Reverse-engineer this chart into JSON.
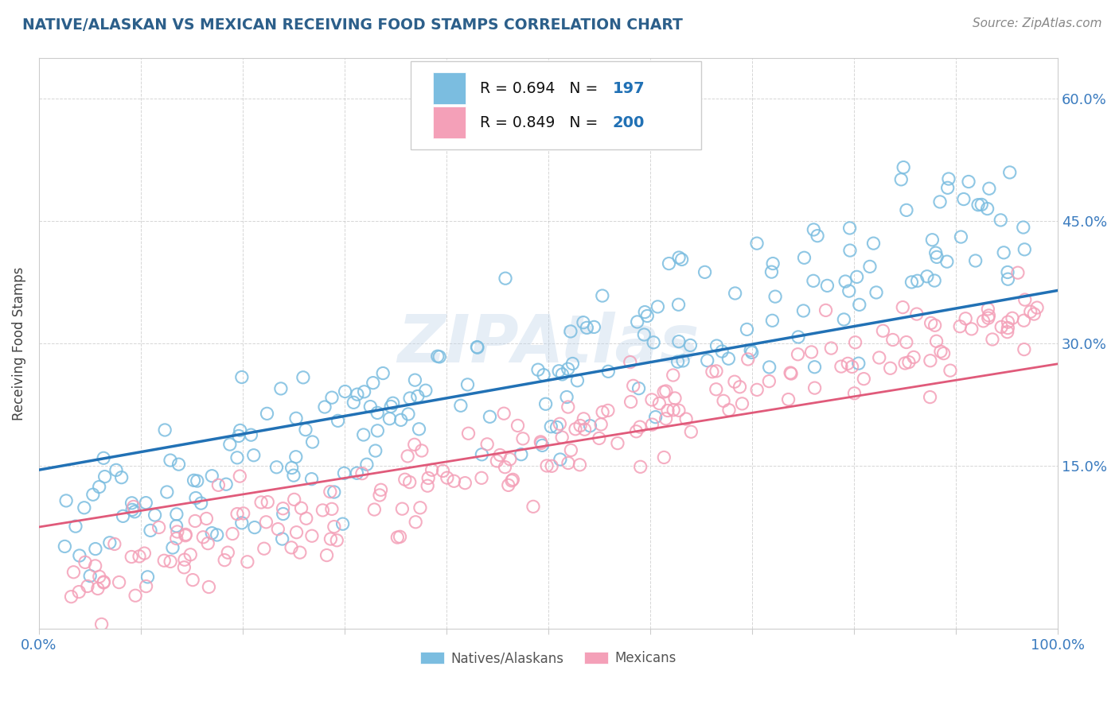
{
  "title": "NATIVE/ALASKAN VS MEXICAN RECEIVING FOOD STAMPS CORRELATION CHART",
  "source": "Source: ZipAtlas.com",
  "ylabel": "Receiving Food Stamps",
  "xlim": [
    0,
    100
  ],
  "ylim": [
    -5,
    65
  ],
  "xticks": [
    0,
    10,
    20,
    30,
    40,
    50,
    60,
    70,
    80,
    90,
    100
  ],
  "yticks": [
    15,
    30,
    45,
    60
  ],
  "blue_R": 0.694,
  "blue_N": 197,
  "pink_R": 0.849,
  "pink_N": 200,
  "blue_color": "#7bbde0",
  "pink_color": "#f4a0b8",
  "blue_line_color": "#2171b5",
  "pink_line_color": "#e05a7a",
  "blue_slope": 0.22,
  "blue_intercept": 14.5,
  "pink_slope": 0.2,
  "pink_intercept": 7.5,
  "watermark": "ZIPAtlas",
  "background_color": "#ffffff",
  "grid_color": "#bbbbbb",
  "title_color": "#2c5f8a",
  "axis_tick_color": "#3a7bbf",
  "axis_label_color": "#444444",
  "legend_label_blue": "Natives/Alaskans",
  "legend_label_pink": "Mexicans",
  "legend_R_color": "#000000",
  "legend_N_color": "#2171b5"
}
